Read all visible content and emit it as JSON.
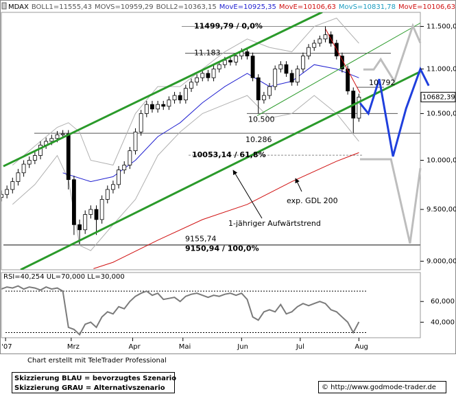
{
  "chart_data": [
    {
      "type": "candlestick",
      "header": [
        {
          "text": "MDAX",
          "color": "#000000"
        },
        {
          "text": "BOLL1=11555,43",
          "color": "#555555"
        },
        {
          "text": "MOVS=10959,29",
          "color": "#555555"
        },
        {
          "text": "BOLL2=10363,15",
          "color": "#555555"
        },
        {
          "text": "MovE=10925,35",
          "color": "#1f1fd0"
        },
        {
          "text": "MovE=10106,63",
          "color": "#d01010"
        },
        {
          "text": "MovS=10831,78",
          "color": "#1a9cc0"
        },
        {
          "text": "MovE=10106,63",
          "color": "#d01010"
        }
      ],
      "x": [
        0,
        2,
        4,
        6,
        8,
        10,
        12,
        14,
        16,
        18,
        20,
        22,
        24,
        26,
        28,
        30,
        32,
        34,
        36,
        38,
        40,
        42,
        44,
        46,
        48,
        50,
        52,
        54,
        56,
        58,
        60,
        62,
        64,
        66,
        68,
        70,
        72,
        74,
        76,
        78,
        80,
        82,
        84,
        86,
        88,
        90,
        92,
        94,
        96,
        98,
        100,
        102,
        104,
        106,
        108,
        110,
        112,
        114,
        116,
        118,
        120,
        122,
        124,
        126,
        128
      ],
      "open": [
        9620,
        9650,
        9700,
        9780,
        9870,
        9960,
        10000,
        10050,
        10160,
        10200,
        10230,
        10270,
        10280,
        9800,
        9350,
        9300,
        9450,
        9500,
        9400,
        9600,
        9700,
        9750,
        9900,
        9950,
        10100,
        10300,
        10500,
        10600,
        10550,
        10600,
        10580,
        10650,
        10700,
        10650,
        10780,
        10850,
        10900,
        10950,
        10900,
        11000,
        11050,
        11100,
        11080,
        11150,
        11200,
        11150,
        10900,
        10650,
        10700,
        10800,
        11000,
        11050,
        10950,
        10850,
        11000,
        11150,
        11250,
        11300,
        11350,
        11400,
        11300,
        11150,
        11000,
        10750,
        10450
      ],
      "high": [
        9690,
        9740,
        9820,
        9910,
        10000,
        10040,
        10090,
        10200,
        10240,
        10270,
        10310,
        10320,
        10320,
        9840,
        9400,
        9490,
        9540,
        9540,
        9640,
        9740,
        9790,
        9940,
        9990,
        10140,
        10340,
        10540,
        10640,
        10640,
        10640,
        10640,
        10690,
        10740,
        10740,
        10820,
        10890,
        10940,
        10990,
        10990,
        11040,
        11090,
        11140,
        11140,
        11190,
        11240,
        11240,
        11190,
        10940,
        10740,
        10840,
        11040,
        11090,
        11090,
        10990,
        11040,
        11190,
        11290,
        11340,
        11390,
        11500,
        11440,
        11340,
        11190,
        11040,
        10790,
        10720
      ],
      "low": [
        9580,
        9610,
        9660,
        9740,
        9830,
        9920,
        9960,
        10010,
        10120,
        10160,
        10190,
        10230,
        9700,
        9250,
        9160,
        9260,
        9410,
        9250,
        9360,
        9560,
        9660,
        9710,
        9860,
        9910,
        10060,
        10260,
        10460,
        10510,
        10510,
        10540,
        10540,
        10610,
        10610,
        10610,
        10740,
        10810,
        10860,
        10860,
        10860,
        10960,
        11010,
        11040,
        11040,
        11110,
        11110,
        10860,
        10500,
        10610,
        10660,
        10760,
        10960,
        10910,
        10810,
        10810,
        10960,
        11110,
        11210,
        11260,
        11310,
        11260,
        11110,
        10960,
        10710,
        10290,
        10410
      ],
      "close": [
        9650,
        9700,
        9780,
        9870,
        9960,
        10000,
        10050,
        10160,
        10200,
        10230,
        10270,
        10280,
        9800,
        9350,
        9300,
        9450,
        9500,
        9400,
        9600,
        9700,
        9750,
        9900,
        9950,
        10100,
        10300,
        10500,
        10600,
        10550,
        10600,
        10580,
        10650,
        10700,
        10650,
        10780,
        10850,
        10900,
        10950,
        10900,
        11000,
        11050,
        11100,
        11080,
        11150,
        11200,
        11150,
        10900,
        10650,
        10700,
        10800,
        11000,
        11050,
        10950,
        10850,
        11000,
        11150,
        11250,
        11300,
        11350,
        11400,
        11300,
        11150,
        11000,
        10750,
        10450,
        10682.39
      ],
      "up_color": "#ffffff",
      "down_color": "#000000",
      "xlim": [
        0,
        150
      ],
      "ylim": [
        8920,
        11670
      ],
      "log_scale": true,
      "yticks": [
        {
          "value": 11500,
          "label": "11.500,00"
        },
        {
          "value": 11000,
          "label": "11.000,00"
        },
        {
          "value": 10500,
          "label": "10.500,00"
        },
        {
          "value": 10000,
          "label": "10.000,00"
        },
        {
          "value": 9500,
          "label": "9.500,00"
        },
        {
          "value": 9000,
          "label": "9.000,00"
        }
      ],
      "last_value": {
        "value": 10682.39,
        "label": "10682,39"
      },
      "overlays": [
        {
          "color": "#b0b0b0",
          "x": [
            4,
            12,
            20,
            24,
            28,
            32,
            40,
            48,
            56,
            64,
            72,
            80,
            88,
            96,
            104,
            112,
            120,
            128
          ],
          "values": [
            9950,
            10150,
            10350,
            10400,
            10300,
            10000,
            9950,
            10500,
            10800,
            10800,
            11000,
            11200,
            11350,
            11250,
            11200,
            11500,
            11600,
            11300
          ]
        },
        {
          "color": "#b0b0b0",
          "x": [
            4,
            12,
            20,
            24,
            28,
            32,
            40,
            48,
            56,
            64,
            72,
            80,
            88,
            96,
            104,
            112,
            120,
            128
          ],
          "values": [
            9550,
            9750,
            10050,
            9800,
            9150,
            9100,
            9350,
            9600,
            10050,
            10300,
            10500,
            10600,
            10700,
            10450,
            10500,
            10700,
            10500,
            10200
          ]
        },
        {
          "color": "#1f1fd0",
          "x": [
            22,
            32,
            40,
            48,
            56,
            64,
            72,
            80,
            88,
            96,
            104,
            112,
            120,
            128
          ],
          "values": [
            9870,
            9780,
            9830,
            10000,
            10250,
            10400,
            10620,
            10800,
            10950,
            10800,
            10860,
            11050,
            11000,
            10900
          ]
        },
        {
          "color": "#d01010",
          "x": [
            33,
            40,
            56,
            72,
            88,
            104,
            120,
            128
          ],
          "values": [
            8930,
            8990,
            9200,
            9400,
            9550,
            9780,
            9990,
            10080
          ]
        }
      ],
      "levels": [
        {
          "value": 11499.79,
          "label": "11499,79 / 0,0%",
          "color": "#8a8a8a",
          "dashed": false
        },
        {
          "value": 11183,
          "label": "11.183",
          "color": "#000000",
          "dashed": false
        },
        {
          "value": 10792,
          "label": "10.792",
          "color": "#000000",
          "dashed": false
        },
        {
          "value": 10500,
          "label": "10.500",
          "color": "#000000",
          "dashed": false
        },
        {
          "value": 10286,
          "label": "10.286",
          "color": "#000000",
          "dashed": false
        },
        {
          "value": 10053.14,
          "label": "10053,14 / 61,8%",
          "color": "#8a8a8a",
          "dashed": true
        },
        {
          "value": 9155.74,
          "label": "9155,74",
          "color": "#000000",
          "dashed": false
        },
        {
          "value": 9150.94,
          "label": "9150,94 / 100,0%",
          "color": "#8a8a8a",
          "dashed": false
        }
      ],
      "trendlines": [
        {
          "color": "#2a9a2a",
          "width": 3,
          "x": [
            0.7,
            114.9
          ],
          "values": [
            9938,
            11673
          ]
        },
        {
          "color": "#2a9a2a",
          "width": 3,
          "x": [
            6.9,
            150
          ],
          "values": [
            8920,
            10970
          ]
        },
        {
          "color": "#2a9a2a",
          "width": 1,
          "x": [
            91.6,
            150
          ],
          "values": [
            10476,
            11541
          ]
        },
        {
          "color": "#d01010",
          "width": 1,
          "x": [
            116.1,
            128.4
          ],
          "values": [
            11467,
            10729
          ]
        }
      ],
      "scenarios": [
        {
          "color": "#1f3fdd",
          "x": [
            128.4,
            131.4,
            135.3,
            140.2,
            144.9,
            150,
            153
          ],
          "values": [
            10615,
            10500,
            10885,
            10040,
            10555,
            11000,
            10810
          ]
        },
        {
          "color": "#bdbdbd",
          "x": [
            129.6,
            133.3,
            135.8,
            140.7,
            147.3,
            150
          ],
          "values": [
            10994,
            10994,
            11112,
            10861,
            11508,
            11304
          ]
        },
        {
          "color": "#bdbdbd",
          "x": [
            128.4,
            139.5,
            146.3,
            150
          ],
          "values": [
            10011,
            10011,
            9169,
            9918
          ]
        }
      ],
      "annotations": [
        "exp. GDL 200",
        "1-jähriger Aufwärtstrend"
      ]
    },
    {
      "type": "line",
      "title": "RSI=40,254 UL=70,000 LL=30,000",
      "x": [
        0,
        2,
        4,
        6,
        8,
        10,
        12,
        14,
        16,
        18,
        20,
        22,
        24,
        26,
        28,
        30,
        32,
        34,
        36,
        38,
        40,
        42,
        44,
        46,
        48,
        50,
        52,
        54,
        56,
        58,
        60,
        62,
        64,
        66,
        68,
        70,
        72,
        74,
        76,
        78,
        80,
        82,
        84,
        86,
        88,
        90,
        92,
        94,
        96,
        98,
        100,
        102,
        104,
        106,
        108,
        110,
        112,
        114,
        116,
        118,
        120,
        122,
        124,
        126,
        128
      ],
      "values": [
        72,
        74,
        73,
        75,
        72,
        74,
        73,
        71,
        74,
        72,
        73,
        70,
        35,
        33,
        28,
        38,
        40,
        35,
        45,
        50,
        48,
        55,
        53,
        60,
        65,
        68,
        70,
        66,
        68,
        62,
        63,
        64,
        60,
        65,
        67,
        68,
        66,
        64,
        66,
        65,
        67,
        68,
        66,
        68,
        62,
        45,
        42,
        50,
        52,
        50,
        57,
        48,
        50,
        55,
        58,
        56,
        58,
        60,
        58,
        52,
        50,
        45,
        40,
        30,
        40.254
      ],
      "color": "#7a7a7a",
      "xlim": [
        0,
        150
      ],
      "xticks": [
        {
          "value": 1.5,
          "label": "'07"
        },
        {
          "value": 25,
          "label": "Mrz"
        },
        {
          "value": 47,
          "label": "Apr"
        },
        {
          "value": 65,
          "label": "Mai"
        },
        {
          "value": 86,
          "label": "Jun"
        },
        {
          "value": 107,
          "label": "Jul"
        },
        {
          "value": 128,
          "label": "Aug"
        }
      ],
      "ylim": [
        25,
        88
      ],
      "yticks": [
        {
          "value": 60,
          "label": "60,000"
        },
        {
          "value": 40,
          "label": "40,000"
        }
      ],
      "levels": [
        70,
        30
      ]
    }
  ],
  "footer": {
    "credit": "Chart erstellt mit TeleTrader Professional",
    "legend_blue": "Skizzierung BLAU = bevorzugtes Szenario",
    "legend_gray": "Skizzierung GRAU = Alternativszenario",
    "source": "© http://www.godmode-trader.de"
  }
}
